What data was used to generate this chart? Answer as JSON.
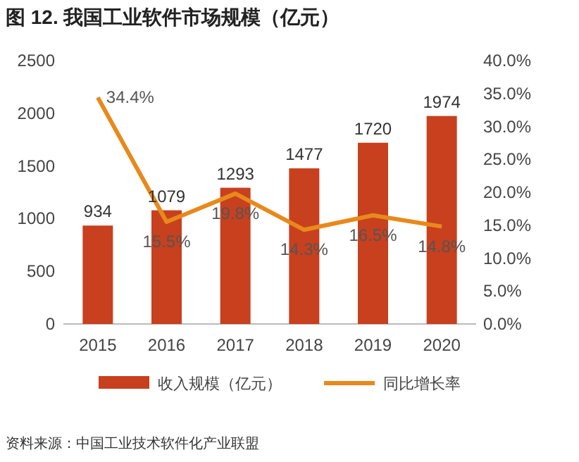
{
  "chart_data": {
    "type": "bar",
    "title": "图 12. 我国工业软件市场规模（亿元）",
    "categories": [
      "2015",
      "2016",
      "2017",
      "2018",
      "2019",
      "2020"
    ],
    "series": [
      {
        "name": "收入规模（亿元）",
        "color": "#c8401e",
        "values": [
          934,
          1079,
          1293,
          1477,
          1720,
          1974
        ],
        "value_labels": [
          "934",
          "1079",
          "1293",
          "1477",
          "1720",
          "1974"
        ]
      },
      {
        "name": "同比增长率",
        "type": "line",
        "axis": "y2",
        "color": "#e8891c",
        "values": [
          34.4,
          15.5,
          19.8,
          14.3,
          16.5,
          14.8
        ],
        "value_labels": [
          "34.4%",
          "15.5%",
          "19.8%",
          "14.3%",
          "16.5%",
          "14.8%"
        ]
      }
    ],
    "ylim": [
      0,
      2500
    ],
    "yticks": [
      0,
      500,
      1000,
      1500,
      2000,
      2500
    ],
    "y2lim": [
      0,
      40
    ],
    "y2ticks": [
      {
        "value": 0,
        "label": "0.0%"
      },
      {
        "value": 5,
        "label": "5.0%"
      },
      {
        "value": 10,
        "label": "10.0%"
      },
      {
        "value": 15,
        "label": "15.0%"
      },
      {
        "value": 20,
        "label": "20.0%"
      },
      {
        "value": 25,
        "label": "25.0%"
      },
      {
        "value": 30,
        "label": "30.0%"
      },
      {
        "value": 35,
        "label": "35.0%"
      },
      {
        "value": 40,
        "label": "40.0%"
      }
    ],
    "legend": "bottom",
    "grid": false,
    "marker": "none",
    "annotations": [
      "资料来源：中国工业技术软件化产业联盟"
    ]
  }
}
